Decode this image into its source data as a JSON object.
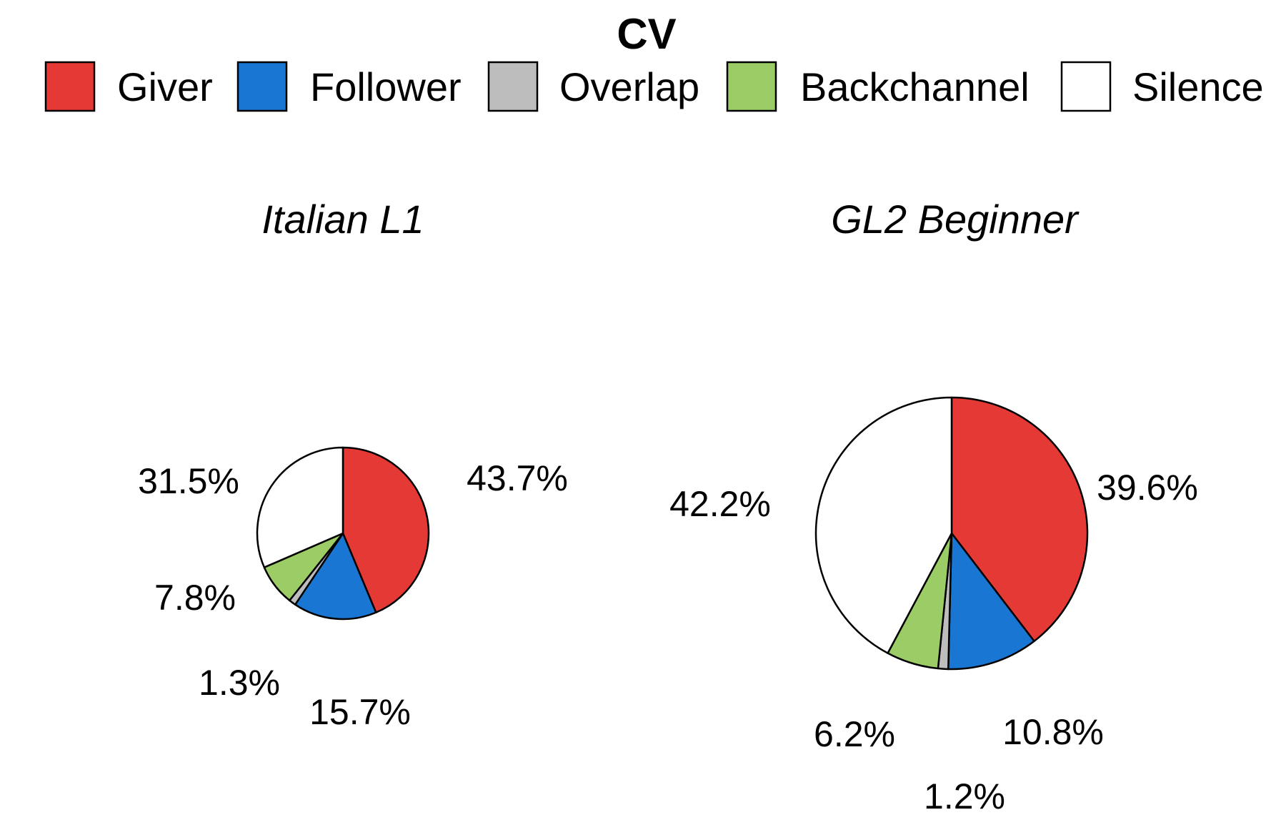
{
  "chart_data": {
    "type": "pie",
    "title": "CV",
    "legend": {
      "placement": "top",
      "entries": [
        {
          "name": "Giver",
          "color": "#E53935"
        },
        {
          "name": "Follower",
          "color": "#1976D2"
        },
        {
          "name": "Overlap",
          "color": "#BDBDBD"
        },
        {
          "name": "Backchannel",
          "color": "#9CCC65"
        },
        {
          "name": "Silence",
          "color": "#FFFFFF"
        }
      ]
    },
    "panels": [
      {
        "title": "Italian L1",
        "slices": [
          {
            "category": "Giver",
            "value": 43.7,
            "label": "43.7%"
          },
          {
            "category": "Follower",
            "value": 15.7,
            "label": "15.7%"
          },
          {
            "category": "Overlap",
            "value": 1.3,
            "label": "1.3%"
          },
          {
            "category": "Backchannel",
            "value": 7.8,
            "label": "7.8%"
          },
          {
            "category": "Silence",
            "value": 31.5,
            "label": "31.5%"
          }
        ]
      },
      {
        "title": "GL2 Beginner",
        "slices": [
          {
            "category": "Giver",
            "value": 39.6,
            "label": "39.6%"
          },
          {
            "category": "Follower",
            "value": 10.8,
            "label": "10.8%"
          },
          {
            "category": "Overlap",
            "value": 1.2,
            "label": "1.2%"
          },
          {
            "category": "Backchannel",
            "value": 6.2,
            "label": "6.2%"
          },
          {
            "category": "Silence",
            "value": 42.2,
            "label": "42.2%"
          }
        ]
      }
    ]
  }
}
